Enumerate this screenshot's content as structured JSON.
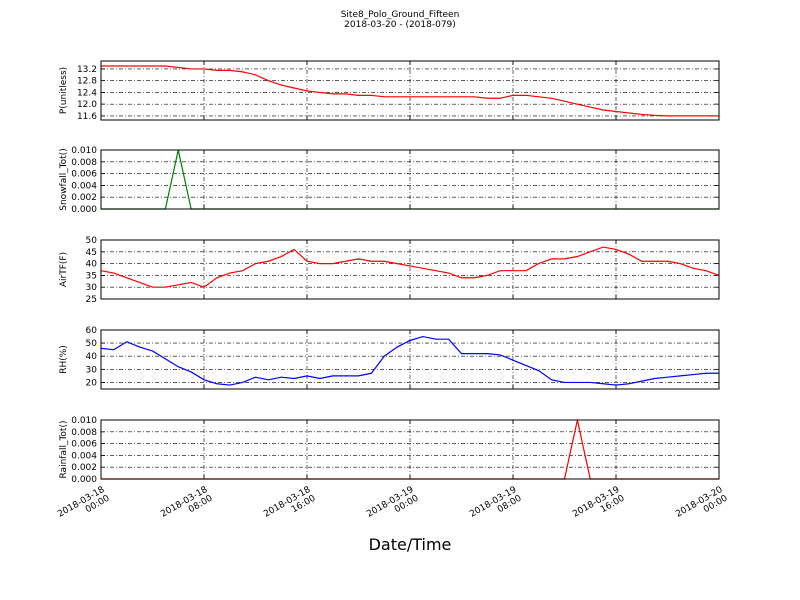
{
  "title": "Site8_Polo_Ground_Fifteen",
  "subtitle": "2018-03-20 - (2018-079)",
  "xlabel": "Date/Time",
  "chart_data": [
    {
      "type": "line",
      "ylabel": "P(unitless)",
      "color": "#ff0000",
      "x": [
        "2018-03-18 00:00",
        "2018-03-18 01:00",
        "2018-03-18 02:00",
        "2018-03-18 03:00",
        "2018-03-18 04:00",
        "2018-03-18 05:00",
        "2018-03-18 06:00",
        "2018-03-18 07:00",
        "2018-03-18 08:00",
        "2018-03-18 09:00",
        "2018-03-18 10:00",
        "2018-03-18 11:00",
        "2018-03-18 12:00",
        "2018-03-18 13:00",
        "2018-03-18 14:00",
        "2018-03-18 15:00",
        "2018-03-18 16:00",
        "2018-03-18 17:00",
        "2018-03-18 18:00",
        "2018-03-18 19:00",
        "2018-03-18 20:00",
        "2018-03-18 21:00",
        "2018-03-18 22:00",
        "2018-03-18 23:00",
        "2018-03-19 00:00",
        "2018-03-19 01:00",
        "2018-03-19 02:00",
        "2018-03-19 03:00",
        "2018-03-19 04:00",
        "2018-03-19 05:00",
        "2018-03-19 06:00",
        "2018-03-19 07:00",
        "2018-03-19 08:00",
        "2018-03-19 09:00",
        "2018-03-19 10:00",
        "2018-03-19 11:00",
        "2018-03-19 12:00",
        "2018-03-19 13:00",
        "2018-03-19 14:00",
        "2018-03-19 15:00",
        "2018-03-19 16:00",
        "2018-03-19 17:00",
        "2018-03-19 18:00",
        "2018-03-19 19:00",
        "2018-03-19 20:00",
        "2018-03-19 21:00",
        "2018-03-19 22:00",
        "2018-03-19 23:00",
        "2018-03-20 00:00"
      ],
      "values": [
        13.3,
        13.3,
        13.3,
        13.3,
        13.3,
        13.3,
        13.25,
        13.2,
        13.2,
        13.15,
        13.15,
        13.1,
        13.0,
        12.8,
        12.65,
        12.55,
        12.45,
        12.4,
        12.35,
        12.35,
        12.3,
        12.3,
        12.25,
        12.25,
        12.25,
        12.25,
        12.25,
        12.25,
        12.25,
        12.25,
        12.2,
        12.2,
        12.3,
        12.3,
        12.25,
        12.2,
        12.1,
        12.0,
        11.9,
        11.8,
        11.75,
        11.7,
        11.65,
        11.62,
        11.6,
        11.6,
        11.6,
        11.6,
        11.6
      ],
      "xlim": [
        "2018-03-18 00:00",
        "2018-03-20 00:00"
      ],
      "xticks": [
        "2018-03-18 00:00",
        "2018-03-18 08:00",
        "2018-03-18 16:00",
        "2018-03-19 00:00",
        "2018-03-19 08:00",
        "2018-03-19 16:00",
        "2018-03-20 00:00"
      ],
      "ylim": [
        11.46,
        13.47
      ],
      "yticks": [
        11.6,
        {
          "value": 12,
          "label": "12.0"
        },
        12.4,
        12.8,
        13.2
      ],
      "grid": true
    },
    {
      "type": "line",
      "ylabel": "Snowfall_Tot()",
      "color": "#008000",
      "x": [
        "2018-03-18 00:00",
        "2018-03-18 01:00",
        "2018-03-18 02:00",
        "2018-03-18 03:00",
        "2018-03-18 04:00",
        "2018-03-18 05:00",
        "2018-03-18 06:00",
        "2018-03-18 07:00",
        "2018-03-18 08:00",
        "2018-03-18 09:00",
        "2018-03-18 10:00",
        "2018-03-18 11:00",
        "2018-03-18 12:00",
        "2018-03-18 13:00",
        "2018-03-18 14:00",
        "2018-03-18 15:00",
        "2018-03-18 16:00",
        "2018-03-18 17:00",
        "2018-03-18 18:00",
        "2018-03-18 19:00",
        "2018-03-18 20:00",
        "2018-03-18 21:00",
        "2018-03-18 22:00",
        "2018-03-18 23:00",
        "2018-03-19 00:00",
        "2018-03-19 01:00",
        "2018-03-19 02:00",
        "2018-03-19 03:00",
        "2018-03-19 04:00",
        "2018-03-19 05:00",
        "2018-03-19 06:00",
        "2018-03-19 07:00",
        "2018-03-19 08:00",
        "2018-03-19 09:00",
        "2018-03-19 10:00",
        "2018-03-19 11:00",
        "2018-03-19 12:00",
        "2018-03-19 13:00",
        "2018-03-19 14:00",
        "2018-03-19 15:00",
        "2018-03-19 16:00",
        "2018-03-19 17:00",
        "2018-03-19 18:00",
        "2018-03-19 19:00",
        "2018-03-19 20:00",
        "2018-03-19 21:00",
        "2018-03-19 22:00",
        "2018-03-19 23:00",
        "2018-03-20 00:00"
      ],
      "values": [
        0,
        0,
        0,
        0,
        0,
        0,
        0.01,
        0,
        0,
        0,
        0,
        0,
        0,
        0,
        0,
        0,
        0,
        0,
        0,
        0,
        0,
        0,
        0,
        0,
        0,
        0,
        0,
        0,
        0,
        0,
        0,
        0,
        0,
        0,
        0,
        0,
        0,
        0,
        0,
        0,
        0,
        0,
        0,
        0,
        0,
        0,
        0,
        0,
        0
      ],
      "xlim": [
        "2018-03-18 00:00",
        "2018-03-20 00:00"
      ],
      "xticks": [
        "2018-03-18 00:00",
        "2018-03-18 08:00",
        "2018-03-18 16:00",
        "2018-03-19 00:00",
        "2018-03-19 08:00",
        "2018-03-19 16:00",
        "2018-03-20 00:00"
      ],
      "ylim": [
        0,
        0.01
      ],
      "yticks": [
        {
          "value": 0,
          "label": "0.000"
        },
        {
          "value": 0.002,
          "label": "0.002"
        },
        {
          "value": 0.004,
          "label": "0.004"
        },
        {
          "value": 0.006,
          "label": "0.006"
        },
        {
          "value": 0.008,
          "label": "0.008"
        },
        {
          "value": 0.01,
          "label": "0.010"
        }
      ],
      "grid": true
    },
    {
      "type": "line",
      "ylabel": "AirTF(F)",
      "color": "#ff0000",
      "x": [
        "2018-03-18 00:00",
        "2018-03-18 01:00",
        "2018-03-18 02:00",
        "2018-03-18 03:00",
        "2018-03-18 04:00",
        "2018-03-18 05:00",
        "2018-03-18 06:00",
        "2018-03-18 07:00",
        "2018-03-18 08:00",
        "2018-03-18 09:00",
        "2018-03-18 10:00",
        "2018-03-18 11:00",
        "2018-03-18 12:00",
        "2018-03-18 13:00",
        "2018-03-18 14:00",
        "2018-03-18 15:00",
        "2018-03-18 16:00",
        "2018-03-18 17:00",
        "2018-03-18 18:00",
        "2018-03-18 19:00",
        "2018-03-18 20:00",
        "2018-03-18 21:00",
        "2018-03-18 22:00",
        "2018-03-18 23:00",
        "2018-03-19 00:00",
        "2018-03-19 01:00",
        "2018-03-19 02:00",
        "2018-03-19 03:00",
        "2018-03-19 04:00",
        "2018-03-19 05:00",
        "2018-03-19 06:00",
        "2018-03-19 07:00",
        "2018-03-19 08:00",
        "2018-03-19 09:00",
        "2018-03-19 10:00",
        "2018-03-19 11:00",
        "2018-03-19 12:00",
        "2018-03-19 13:00",
        "2018-03-19 14:00",
        "2018-03-19 15:00",
        "2018-03-19 16:00",
        "2018-03-19 17:00",
        "2018-03-19 18:00",
        "2018-03-19 19:00",
        "2018-03-19 20:00",
        "2018-03-19 21:00",
        "2018-03-19 22:00",
        "2018-03-19 23:00",
        "2018-03-20 00:00"
      ],
      "values": [
        37,
        36,
        34,
        32,
        30,
        30,
        31,
        32,
        30,
        34,
        36,
        37,
        40,
        41,
        43,
        46,
        41,
        40,
        40,
        41,
        42,
        41,
        41,
        40,
        39,
        38,
        37,
        36,
        34,
        34,
        35,
        37,
        37,
        37,
        40,
        42,
        42,
        43,
        45,
        47,
        46,
        44,
        41,
        41,
        41,
        40,
        38,
        37,
        35
      ],
      "xlim": [
        "2018-03-18 00:00",
        "2018-03-20 00:00"
      ],
      "xticks": [
        "2018-03-18 00:00",
        "2018-03-18 08:00",
        "2018-03-18 16:00",
        "2018-03-19 00:00",
        "2018-03-19 08:00",
        "2018-03-19 16:00",
        "2018-03-20 00:00"
      ],
      "ylim": [
        25,
        50
      ],
      "yticks": [
        25,
        30,
        35,
        40,
        45,
        50
      ],
      "grid": true
    },
    {
      "type": "line",
      "ylabel": "RH(%)",
      "color": "#0000ff",
      "x": [
        "2018-03-18 00:00",
        "2018-03-18 01:00",
        "2018-03-18 02:00",
        "2018-03-18 03:00",
        "2018-03-18 04:00",
        "2018-03-18 05:00",
        "2018-03-18 06:00",
        "2018-03-18 07:00",
        "2018-03-18 08:00",
        "2018-03-18 09:00",
        "2018-03-18 10:00",
        "2018-03-18 11:00",
        "2018-03-18 12:00",
        "2018-03-18 13:00",
        "2018-03-18 14:00",
        "2018-03-18 15:00",
        "2018-03-18 16:00",
        "2018-03-18 17:00",
        "2018-03-18 18:00",
        "2018-03-18 19:00",
        "2018-03-18 20:00",
        "2018-03-18 21:00",
        "2018-03-18 22:00",
        "2018-03-18 23:00",
        "2018-03-19 00:00",
        "2018-03-19 01:00",
        "2018-03-19 02:00",
        "2018-03-19 03:00",
        "2018-03-19 04:00",
        "2018-03-19 05:00",
        "2018-03-19 06:00",
        "2018-03-19 07:00",
        "2018-03-19 08:00",
        "2018-03-19 09:00",
        "2018-03-19 10:00",
        "2018-03-19 11:00",
        "2018-03-19 12:00",
        "2018-03-19 13:00",
        "2018-03-19 14:00",
        "2018-03-19 15:00",
        "2018-03-19 16:00",
        "2018-03-19 17:00",
        "2018-03-19 18:00",
        "2018-03-19 19:00",
        "2018-03-19 20:00",
        "2018-03-19 21:00",
        "2018-03-19 22:00",
        "2018-03-19 23:00",
        "2018-03-20 00:00"
      ],
      "values": [
        46,
        45,
        51,
        47,
        44,
        38,
        32,
        28,
        22,
        19,
        18,
        20,
        24,
        22,
        24,
        23,
        25,
        23,
        25,
        25,
        25,
        27,
        40,
        47,
        52,
        55,
        53,
        53,
        42,
        42,
        42,
        41,
        37,
        33,
        29,
        22,
        20,
        20,
        20,
        19,
        18,
        19,
        21,
        23,
        24,
        25,
        26,
        27,
        27
      ],
      "xlim": [
        "2018-03-18 00:00",
        "2018-03-20 00:00"
      ],
      "xticks": [
        "2018-03-18 00:00",
        "2018-03-18 08:00",
        "2018-03-18 16:00",
        "2018-03-19 00:00",
        "2018-03-19 08:00",
        "2018-03-19 16:00",
        "2018-03-20 00:00"
      ],
      "ylim": [
        15,
        60
      ],
      "yticks": [
        20,
        30,
        40,
        50,
        60
      ],
      "grid": true
    },
    {
      "type": "line",
      "ylabel": "Rainfall_Tot()",
      "color": "#ff0000",
      "x": [
        "2018-03-18 00:00",
        "2018-03-18 01:00",
        "2018-03-18 02:00",
        "2018-03-18 03:00",
        "2018-03-18 04:00",
        "2018-03-18 05:00",
        "2018-03-18 06:00",
        "2018-03-18 07:00",
        "2018-03-18 08:00",
        "2018-03-18 09:00",
        "2018-03-18 10:00",
        "2018-03-18 11:00",
        "2018-03-18 12:00",
        "2018-03-18 13:00",
        "2018-03-18 14:00",
        "2018-03-18 15:00",
        "2018-03-18 16:00",
        "2018-03-18 17:00",
        "2018-03-18 18:00",
        "2018-03-18 19:00",
        "2018-03-18 20:00",
        "2018-03-18 21:00",
        "2018-03-18 22:00",
        "2018-03-18 23:00",
        "2018-03-19 00:00",
        "2018-03-19 01:00",
        "2018-03-19 02:00",
        "2018-03-19 03:00",
        "2018-03-19 04:00",
        "2018-03-19 05:00",
        "2018-03-19 06:00",
        "2018-03-19 07:00",
        "2018-03-19 08:00",
        "2018-03-19 09:00",
        "2018-03-19 10:00",
        "2018-03-19 11:00",
        "2018-03-19 12:00",
        "2018-03-19 13:00",
        "2018-03-19 14:00",
        "2018-03-19 15:00",
        "2018-03-19 16:00",
        "2018-03-19 17:00",
        "2018-03-19 18:00",
        "2018-03-19 19:00",
        "2018-03-19 20:00",
        "2018-03-19 21:00",
        "2018-03-19 22:00",
        "2018-03-19 23:00",
        "2018-03-20 00:00"
      ],
      "values": [
        0,
        0,
        0,
        0,
        0,
        0,
        0,
        0,
        0,
        0,
        0,
        0,
        0,
        0,
        0,
        0,
        0,
        0,
        0,
        0,
        0,
        0,
        0,
        0,
        0,
        0,
        0,
        0,
        0,
        0,
        0,
        0,
        0,
        0,
        0,
        0,
        0,
        0.01,
        0,
        0,
        0,
        0,
        0,
        0,
        0,
        0,
        0,
        0,
        0
      ],
      "xlim": [
        "2018-03-18 00:00",
        "2018-03-20 00:00"
      ],
      "xticks": [
        "2018-03-18 00:00",
        "2018-03-18 08:00",
        "2018-03-18 16:00",
        "2018-03-19 00:00",
        "2018-03-19 08:00",
        "2018-03-19 16:00",
        "2018-03-20 00:00"
      ],
      "ylim": [
        0,
        0.01
      ],
      "yticks": [
        {
          "value": 0,
          "label": "0.000"
        },
        {
          "value": 0.002,
          "label": "0.002"
        },
        {
          "value": 0.004,
          "label": "0.004"
        },
        {
          "value": 0.006,
          "label": "0.006"
        },
        {
          "value": 0.008,
          "label": "0.008"
        },
        {
          "value": 0.01,
          "label": "0.010"
        }
      ],
      "grid": true
    }
  ]
}
